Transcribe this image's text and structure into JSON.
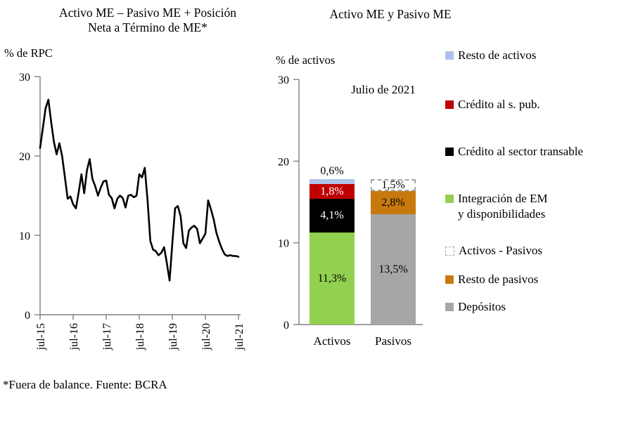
{
  "footnote": "*Fuera de balance. Fuente: BCRA",
  "chart_data": [
    {
      "type": "line",
      "title": "Activo ME – Pasivo ME + Posición Neta a Término de ME*",
      "title_lines": [
        "Activo ME – Pasivo ME + Posición",
        "Neta a Término de ME*"
      ],
      "ylabel": "% de RPC",
      "ylim": [
        0,
        30
      ],
      "yticks": [
        0,
        10,
        20,
        30
      ],
      "x_tick_labels": [
        "jul-15",
        "jul-16",
        "jul-17",
        "jul-18",
        "jul-19",
        "jul-20",
        "jul-21"
      ],
      "x_frequency": "monthly",
      "x_range": [
        "jul-2015",
        "jul-2021"
      ],
      "values": [
        21.0,
        23.5,
        26.0,
        27.1,
        24.3,
        21.8,
        20.2,
        21.6,
        20.0,
        17.3,
        14.6,
        14.9,
        13.9,
        13.4,
        15.4,
        17.7,
        15.3,
        18.2,
        19.6,
        17.1,
        16.2,
        15.0,
        16.0,
        16.8,
        16.9,
        15.1,
        14.7,
        13.4,
        14.6,
        15.0,
        14.7,
        13.5,
        15.0,
        15.1,
        14.8,
        15.0,
        17.7,
        17.3,
        18.5,
        14.4,
        9.3,
        8.2,
        8.0,
        7.5,
        7.8,
        8.5,
        6.5,
        4.3,
        9.0,
        13.4,
        13.7,
        12.4,
        9.0,
        8.4,
        10.6,
        11.0,
        11.2,
        10.8,
        9.0,
        9.6,
        10.2,
        14.4,
        13.3,
        12.0,
        10.3,
        9.2,
        8.3,
        7.6,
        7.4,
        7.5,
        7.4,
        7.4,
        7.3
      ],
      "line_color": "#000000",
      "axis_color": "#808080",
      "grid": false
    },
    {
      "type": "bar",
      "stacked": true,
      "title": "Activo ME y Pasivo ME",
      "ylabel": "% de activos",
      "ylim": [
        0,
        30
      ],
      "yticks": [
        0,
        10,
        20,
        30
      ],
      "annotation": "Julio de 2021",
      "categories": [
        "Activos",
        "Pasivos"
      ],
      "bars": [
        {
          "category": "Activos",
          "segments": [
            {
              "name": "Integración de EM y disponibilidades",
              "value": 11.3,
              "label": "11,3%",
              "color": "#92D050",
              "label_color": "#000000",
              "label_inside": true
            },
            {
              "name": "Crédito al sector transable",
              "value": 4.1,
              "label": "4,1%",
              "color": "#000000",
              "label_color": "#FFFFFF",
              "label_inside": true
            },
            {
              "name": "Crédito al s. pub.",
              "value": 1.8,
              "label": "1,8%",
              "color": "#C00000",
              "label_color": "#FFFFFF",
              "label_inside": true
            },
            {
              "name": "Resto de activos",
              "value": 0.6,
              "label": "0,6%",
              "color": "#AEC3EB",
              "label_color": "#000000",
              "label_inside": false
            }
          ]
        },
        {
          "category": "Pasivos",
          "segments": [
            {
              "name": "Depósitos",
              "value": 13.5,
              "label": "13,5%",
              "color": "#A6A6A6",
              "label_color": "#000000",
              "label_inside": true
            },
            {
              "name": "Resto de pasivos",
              "value": 2.8,
              "label": "2,8%",
              "color": "#C8790D",
              "label_color": "#000000",
              "label_inside": true
            },
            {
              "name": "Activos - Pasivos",
              "value": 1.5,
              "label": "1,5%",
              "color": "#FFFFFF",
              "label_color": "#000000",
              "label_inside": true,
              "dashed": true
            }
          ]
        }
      ],
      "legend": [
        {
          "label": "Resto de activos",
          "color": "#AEC3EB"
        },
        {
          "label": "Crédito al s. pub.",
          "color": "#C00000"
        },
        {
          "label": "Crédito al sector transable",
          "color": "#000000"
        },
        {
          "label": "Integración de EM y disponibilidades",
          "color": "#92D050"
        },
        {
          "label": "Activos - Pasivos",
          "color": "#FFFFFF",
          "dashed": true
        },
        {
          "label": "Resto de pasivos",
          "color": "#C8790D"
        },
        {
          "label": "Depósitos",
          "color": "#A6A6A6"
        }
      ],
      "legend_position": "right",
      "axis_color": "#808080",
      "dash_border_color": "#A6A6A6",
      "legend_dash_border_color": "#97A7CC",
      "grid": false
    }
  ]
}
